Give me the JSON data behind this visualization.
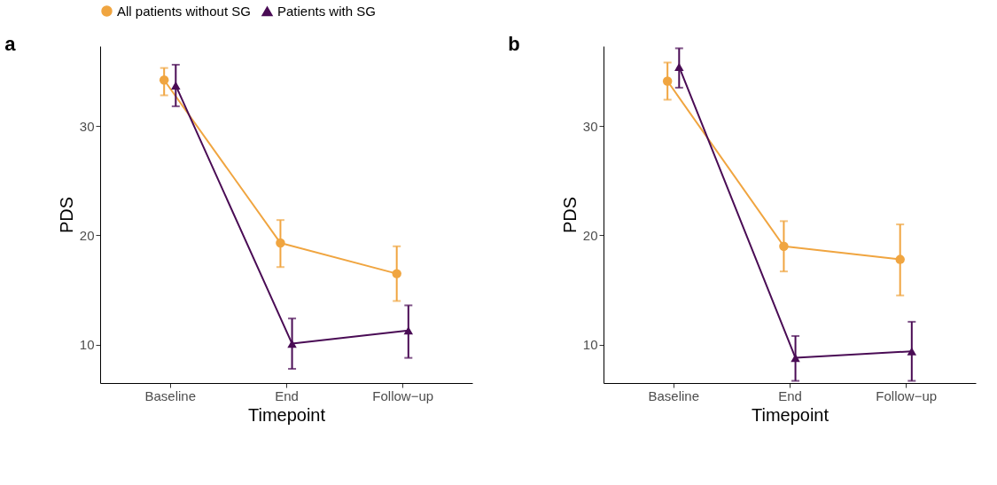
{
  "chart_data": [
    {
      "type": "line",
      "title": "a",
      "xlabel": "Timepoint",
      "ylabel": "PDS",
      "categories": [
        "Baseline",
        "End",
        "Follow−up"
      ],
      "ylim": [
        6.5,
        37.3
      ],
      "yticks": [
        10,
        20,
        30
      ],
      "grid": false,
      "legend": "top",
      "series": [
        {
          "name": "All patients without SG",
          "color": "#f0a540",
          "marker": "circle",
          "values": [
            34.2,
            19.3,
            16.5
          ],
          "errors": [
            [
              32.8,
              35.3
            ],
            [
              17.1,
              21.4
            ],
            [
              14.0,
              19.0
            ]
          ]
        },
        {
          "name": "Patients with SG",
          "color": "#4a0c55",
          "marker": "triangle",
          "values": [
            33.7,
            10.1,
            11.3
          ],
          "errors": [
            [
              31.8,
              35.6
            ],
            [
              7.8,
              12.4
            ],
            [
              8.8,
              13.6
            ]
          ]
        }
      ]
    },
    {
      "type": "line",
      "title": "b",
      "xlabel": "Timepoint",
      "ylabel": "PDS",
      "categories": [
        "Baseline",
        "End",
        "Follow−up"
      ],
      "ylim": [
        6.5,
        37.3
      ],
      "yticks": [
        10,
        20,
        30
      ],
      "grid": false,
      "legend": "top",
      "series": [
        {
          "name": "All patients without SG",
          "color": "#f0a540",
          "marker": "circle",
          "values": [
            34.1,
            19.0,
            17.8
          ],
          "errors": [
            [
              32.4,
              35.8
            ],
            [
              16.7,
              21.3
            ],
            [
              14.5,
              21.0
            ]
          ]
        },
        {
          "name": "Patients with SG",
          "color": "#4a0c55",
          "marker": "triangle",
          "values": [
            35.4,
            8.8,
            9.4
          ],
          "errors": [
            [
              33.5,
              37.1
            ],
            [
              6.7,
              10.8
            ],
            [
              6.7,
              12.1
            ]
          ]
        }
      ]
    }
  ]
}
